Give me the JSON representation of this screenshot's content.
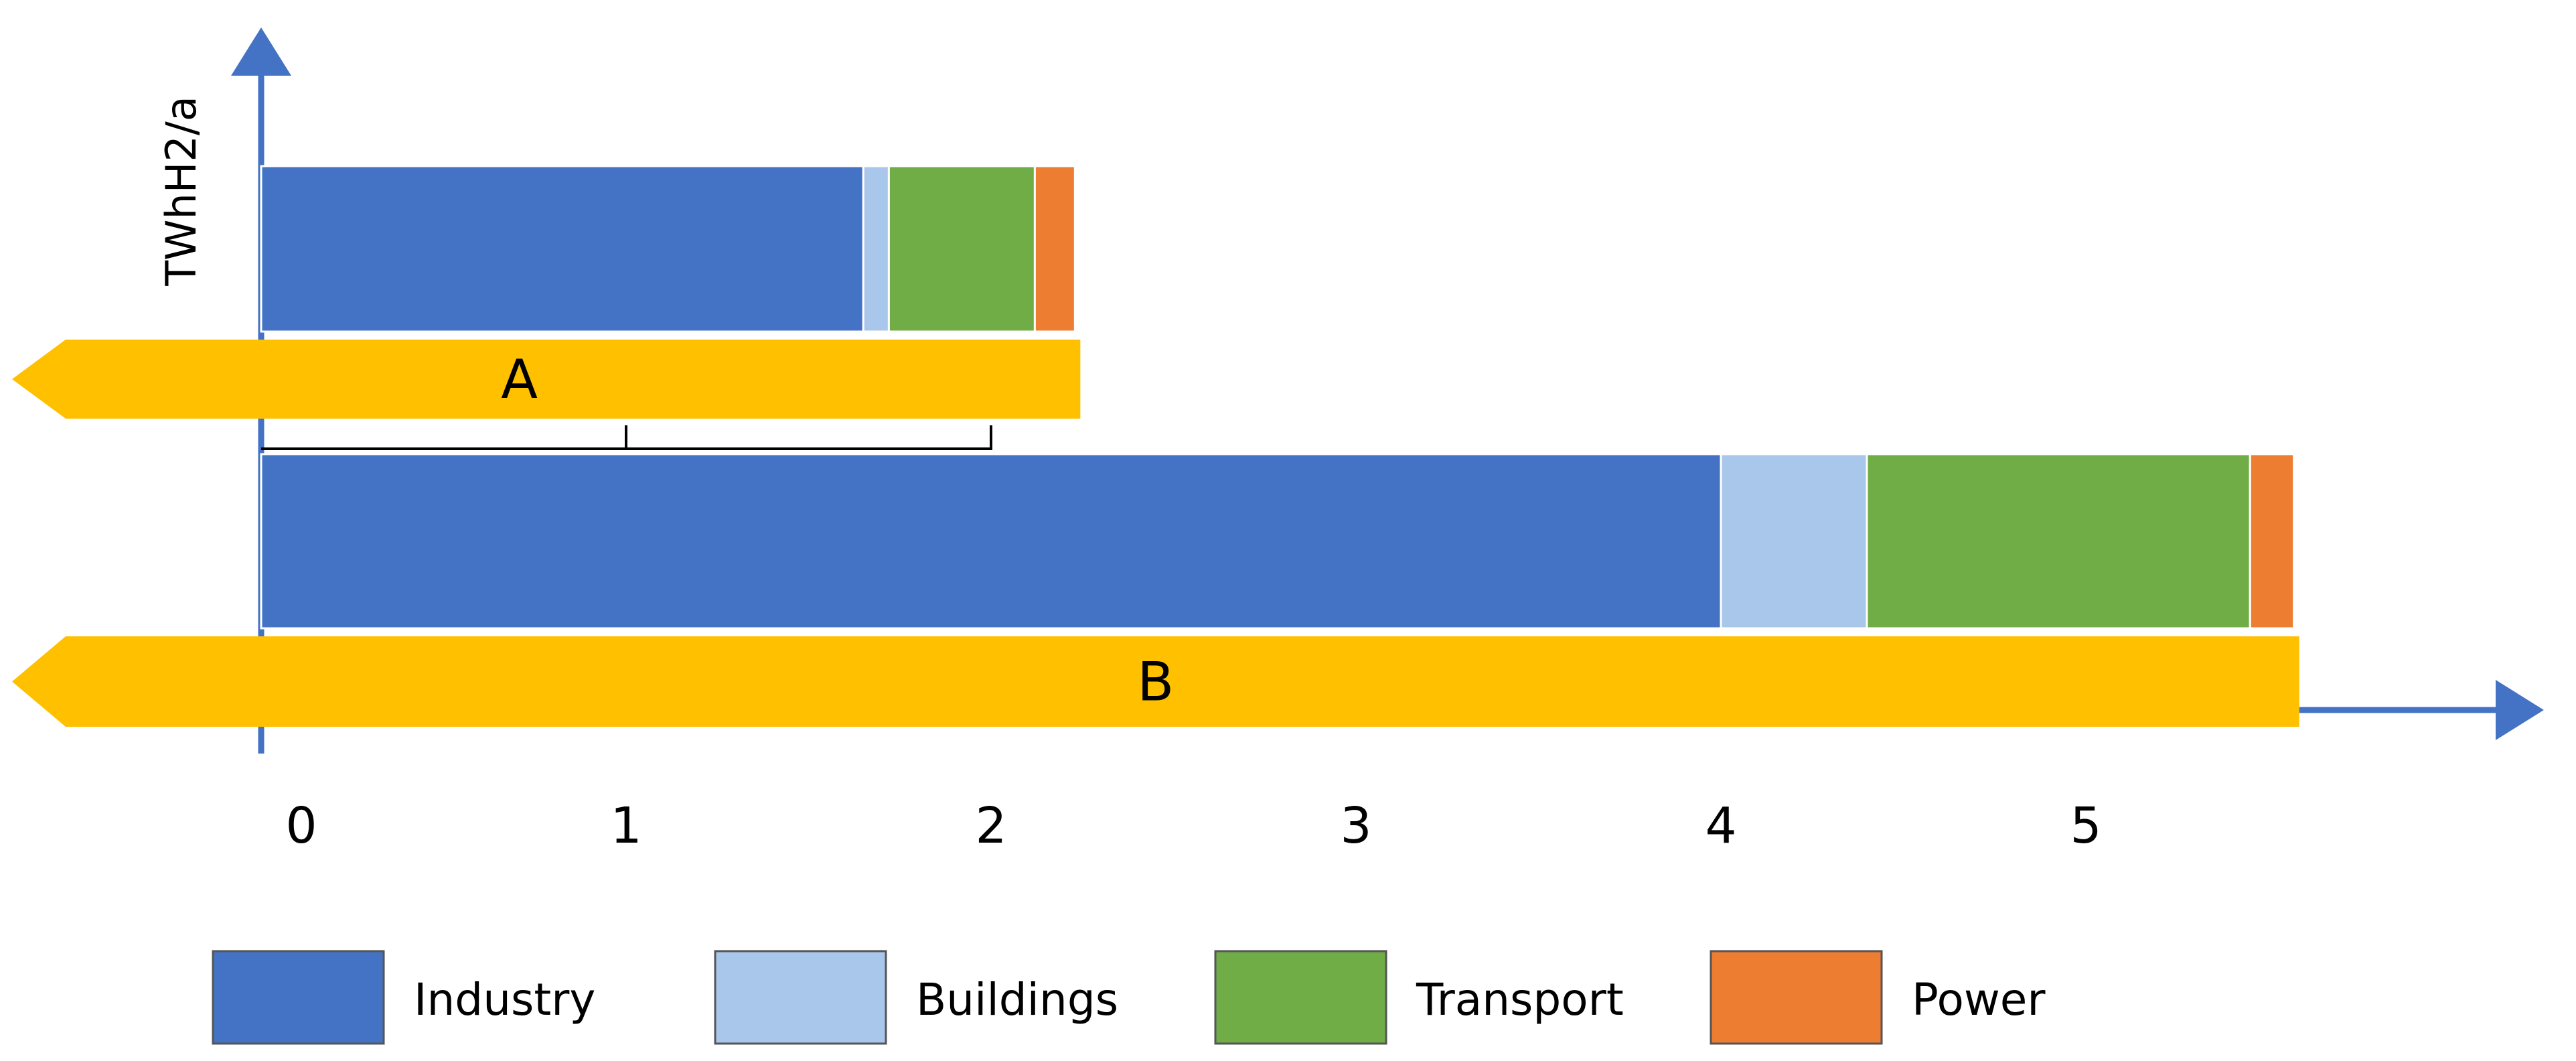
{
  "chart_data": {
    "type": "bar",
    "orientation": "horizontal",
    "stacked": true,
    "ylabel": "TWhH2/a",
    "xlabel": "",
    "xlim": [
      0,
      6
    ],
    "x_ticks": [
      "0",
      "1",
      "2",
      "3",
      "4",
      "5"
    ],
    "grid": false,
    "legend_position": "bottom",
    "categories": [
      "A",
      "B"
    ],
    "series": [
      {
        "name": "Industry",
        "color": "#4472C4",
        "values": [
          1.65,
          4.0
        ]
      },
      {
        "name": "Buildings",
        "color": "#A9C6EB",
        "values": [
          0.07,
          0.4
        ]
      },
      {
        "name": "Transport",
        "color": "#70AD47",
        "values": [
          0.4,
          1.05
        ]
      },
      {
        "name": "Power",
        "color": "#ED7D31",
        "values": [
          0.11,
          0.12
        ]
      }
    ],
    "category_arrow_color": "#FFC000",
    "axis_color": "#4472C4"
  }
}
